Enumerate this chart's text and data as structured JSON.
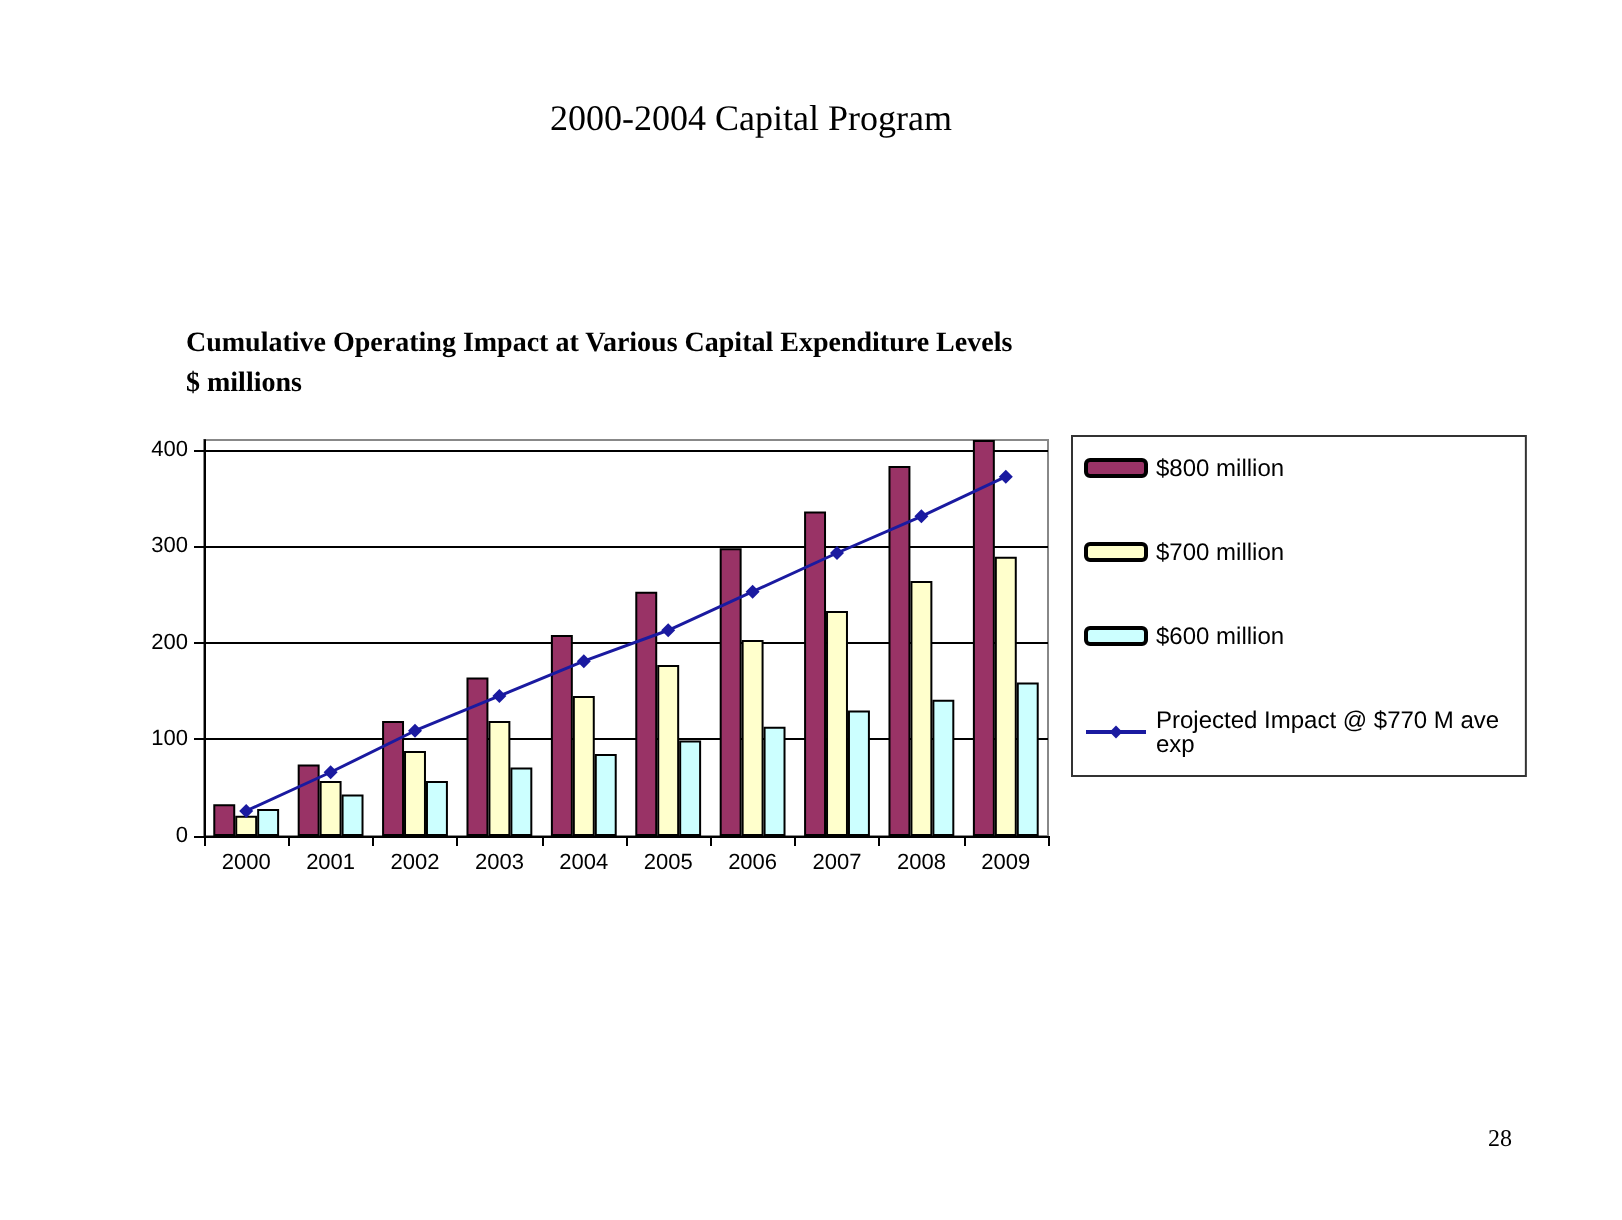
{
  "chart_data": {
    "type": "bar",
    "title": "2000-2004 Capital Program",
    "subtitle": "Cumulative Operating Impact at Various Capital Expenditure Levels\n$ millions",
    "categories": [
      "2000",
      "2001",
      "2002",
      "2003",
      "2004",
      "2005",
      "2006",
      "2007",
      "2008",
      "2009"
    ],
    "series": [
      {
        "name": "$800 million",
        "color": "#993366",
        "values": [
          33,
          74,
          119,
          164,
          208,
          253,
          298,
          336,
          383,
          410
        ]
      },
      {
        "name": "$700 million",
        "color": "#ffffcc",
        "values": [
          21,
          57,
          88,
          119,
          145,
          177,
          203,
          233,
          264,
          289
        ]
      },
      {
        "name": "$600 million",
        "color": "#ccffff",
        "values": [
          28,
          43,
          57,
          71,
          85,
          99,
          113,
          130,
          141,
          159
        ]
      },
      {
        "name": "Projected Impact @ $770 M ave exp",
        "type": "line",
        "color": "#1a1aa0",
        "marker": "diamond",
        "values": [
          26,
          66,
          109,
          145,
          181,
          213,
          253,
          293,
          331,
          372
        ]
      }
    ],
    "ylim": [
      0,
      410
    ],
    "yticks": [
      0,
      100,
      200,
      300,
      400
    ],
    "grid": "y",
    "legend": "right",
    "annotations": [
      "28"
    ]
  }
}
